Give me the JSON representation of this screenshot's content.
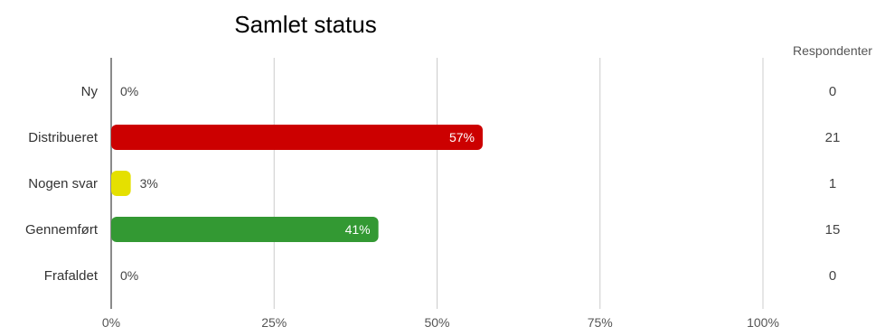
{
  "chart_data": {
    "type": "bar",
    "orientation": "horizontal",
    "title": "Samlet status",
    "categories": [
      "Ny",
      "Distribueret",
      "Nogen svar",
      "Gennemført",
      "Frafaldet"
    ],
    "values": [
      0,
      57,
      3,
      41,
      0
    ],
    "value_labels": [
      "0%",
      "57%",
      "3%",
      "41%",
      "0%"
    ],
    "bar_colors": [
      "#cccccc",
      "#cc0000",
      "#e5e000",
      "#339933",
      "#cccccc"
    ],
    "respondents_header": "Respondenter",
    "respondents": [
      "0",
      "21",
      "1",
      "15",
      "0"
    ],
    "x_ticks": [
      0,
      25,
      50,
      75,
      100
    ],
    "x_tick_labels": [
      "0%",
      "25%",
      "50%",
      "75%",
      "100%"
    ],
    "xlim": [
      0,
      100
    ],
    "grid": true,
    "legend": "none"
  }
}
